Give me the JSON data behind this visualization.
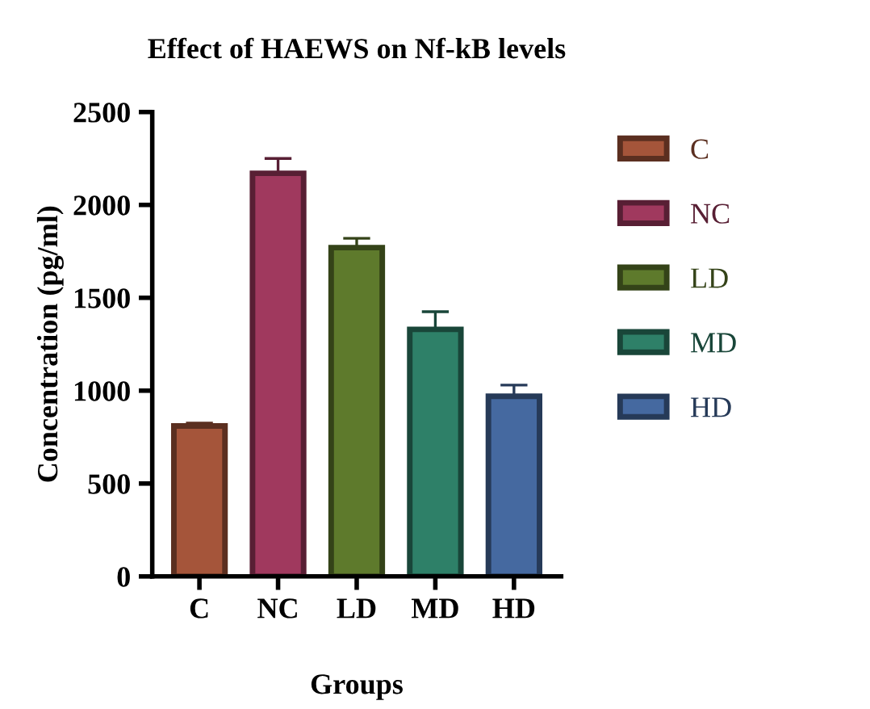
{
  "chart_data": {
    "type": "bar",
    "title": "Effect of HAEWS on Nf-kB levels",
    "xlabel": "Groups",
    "ylabel": "Concentration (pg/ml)",
    "categories": [
      "C",
      "NC",
      "LD",
      "MD",
      "HD"
    ],
    "series": [
      {
        "name": "C",
        "color": "#a5553a",
        "values": [
          810,
          null,
          null,
          null,
          null
        ],
        "errors": [
          15,
          null,
          null,
          null,
          null
        ]
      },
      {
        "name": "NC",
        "color": "#a0395e",
        "values": [
          null,
          2170,
          null,
          null,
          null
        ],
        "errors": [
          null,
          80,
          null,
          null,
          null
        ]
      },
      {
        "name": "LD",
        "color": "#5e7a2c",
        "values": [
          null,
          null,
          1770,
          null,
          null
        ],
        "errors": [
          null,
          null,
          50,
          null,
          null
        ]
      },
      {
        "name": "MD",
        "color": "#2e8068",
        "values": [
          null,
          null,
          null,
          1330,
          null
        ],
        "errors": [
          null,
          null,
          null,
          95,
          null
        ]
      },
      {
        "name": "HD",
        "color": "#4569a0",
        "values": [
          null,
          null,
          null,
          null,
          970
        ],
        "errors": [
          null,
          null,
          null,
          null,
          60
        ]
      }
    ],
    "ylim": [
      0,
      2500
    ],
    "yticks": [
      0,
      500,
      1000,
      1500,
      2000,
      2500
    ],
    "grid": false,
    "legend": "right"
  }
}
